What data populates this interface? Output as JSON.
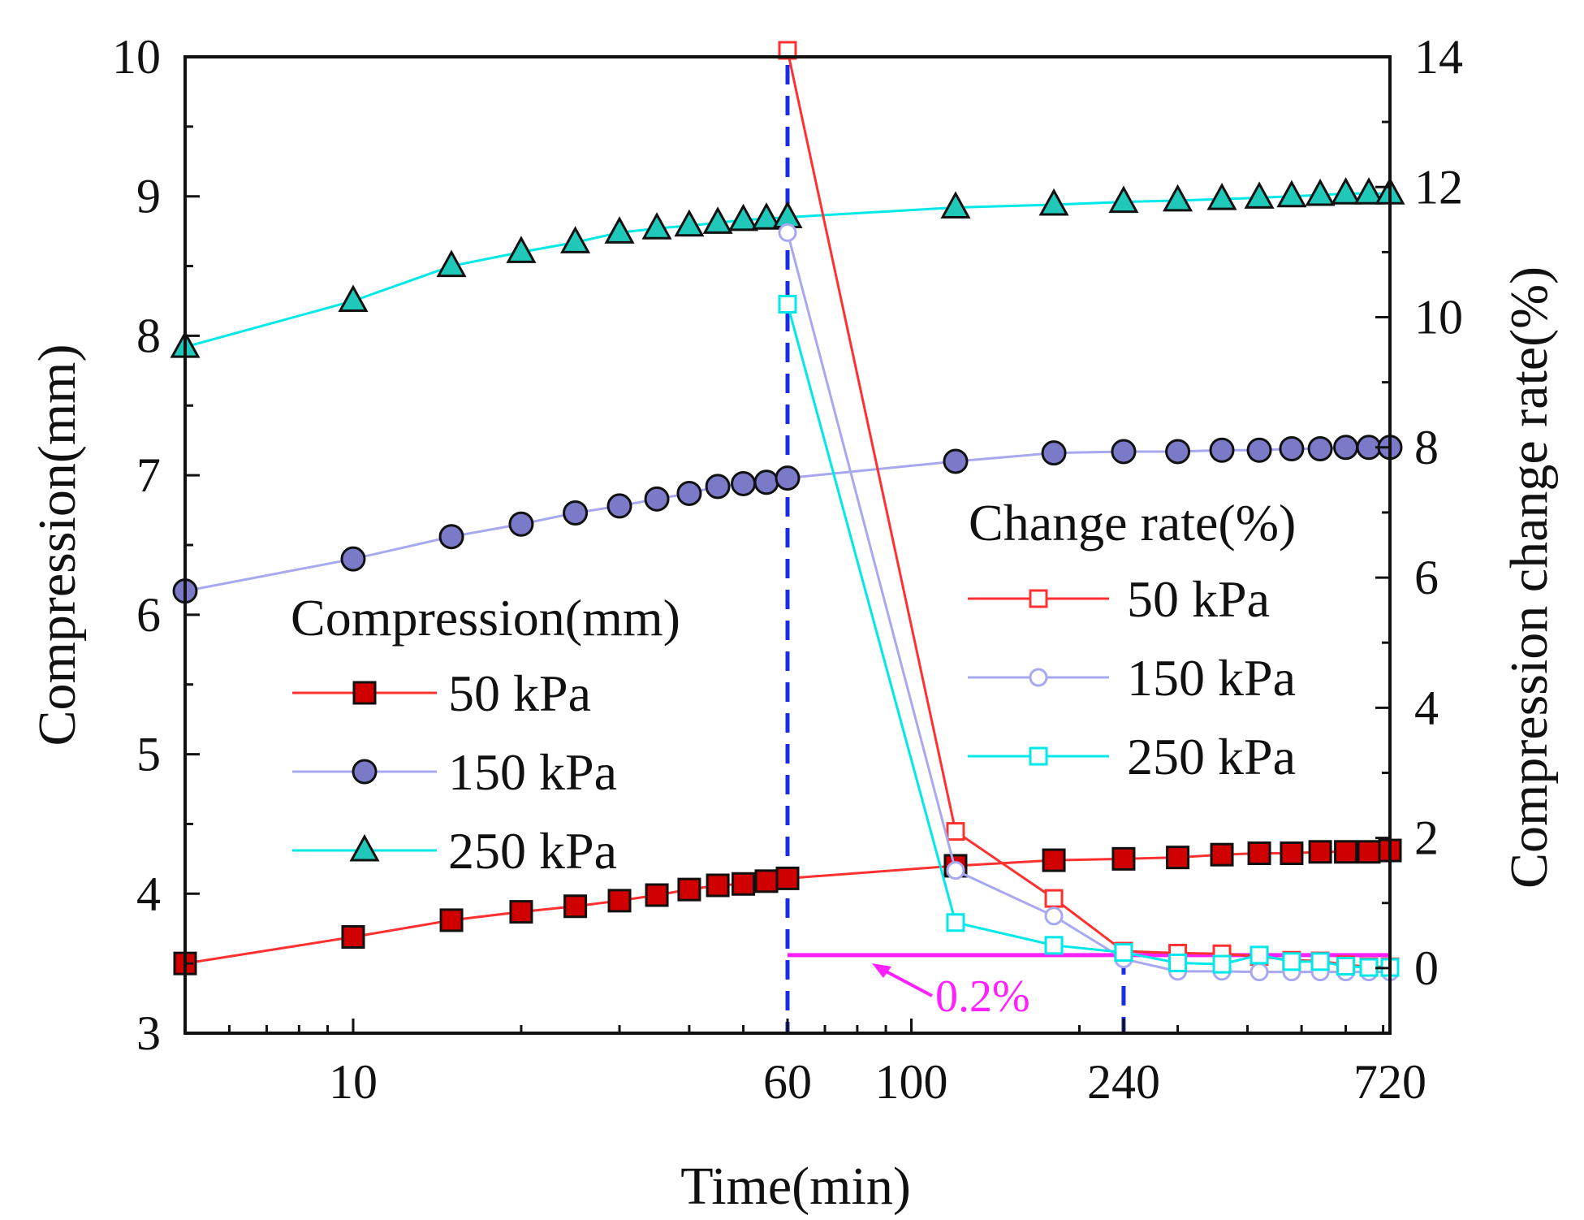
{
  "chart_data": {
    "type": "line",
    "xscale": "log",
    "xlabel": "Time(min)",
    "ylabel_left": "Compression(mm)",
    "ylabel_right": "Compression change rate(%)",
    "xlim": [
      5,
      720
    ],
    "ylim_left": [
      3,
      10
    ],
    "ylim_right": [
      -1,
      14
    ],
    "x_ticks": [
      10,
      60,
      100,
      240,
      720
    ],
    "y_ticks_left": [
      3,
      4,
      5,
      6,
      7,
      8,
      9,
      10
    ],
    "y_ticks_right": [
      0,
      2,
      4,
      6,
      8,
      10,
      12,
      14
    ],
    "grid": false,
    "compression": {
      "legend_title": "Compression(mm)",
      "legend_position": "center-left",
      "x": [
        5,
        10,
        15,
        20,
        25,
        30,
        35,
        40,
        45,
        50,
        55,
        60,
        120,
        180,
        240,
        300,
        360,
        420,
        480,
        540,
        600,
        660,
        720
      ],
      "series": [
        {
          "name": "50 kPa",
          "color": "#ff3030",
          "marker": "square-filled",
          "values": [
            3.5,
            3.69,
            3.81,
            3.87,
            3.91,
            3.95,
            3.99,
            4.03,
            4.06,
            4.07,
            4.09,
            4.11,
            4.2,
            4.24,
            4.25,
            4.26,
            4.28,
            4.29,
            4.29,
            4.3,
            4.3,
            4.3,
            4.31
          ]
        },
        {
          "name": "150 kPa",
          "color": "#a8a8f0",
          "marker": "circle-filled",
          "values": [
            6.17,
            6.4,
            6.56,
            6.65,
            6.73,
            6.78,
            6.83,
            6.87,
            6.92,
            6.94,
            6.95,
            6.98,
            7.1,
            7.16,
            7.17,
            7.17,
            7.18,
            7.18,
            7.19,
            7.19,
            7.2,
            7.2,
            7.2
          ]
        },
        {
          "name": "250 kPa",
          "color": "#00e8e8",
          "marker": "triangle-filled",
          "values": [
            7.92,
            8.25,
            8.5,
            8.6,
            8.67,
            8.74,
            8.77,
            8.79,
            8.81,
            8.83,
            8.84,
            8.85,
            8.92,
            8.94,
            8.96,
            8.97,
            8.98,
            8.99,
            9.0,
            9.01,
            9.02,
            9.02,
            9.02
          ]
        }
      ]
    },
    "change_rate": {
      "legend_title": "Change rate(%)",
      "legend_position": "center-right",
      "x": [
        60,
        120,
        180,
        240,
        300,
        360,
        420,
        480,
        540,
        600,
        660,
        720
      ],
      "series": [
        {
          "name": "50 kPa",
          "color": "#ff3030",
          "marker": "square-open",
          "values": [
            14.1,
            2.1,
            1.07,
            0.26,
            0.23,
            0.22,
            0.18,
            0.12,
            0.11,
            0.05,
            0.02,
            0.02
          ]
        },
        {
          "name": "150 kPa",
          "color": "#a8a8f0",
          "marker": "circle-open",
          "values": [
            11.3,
            1.5,
            0.8,
            0.14,
            -0.05,
            -0.05,
            -0.06,
            -0.06,
            -0.06,
            -0.06,
            -0.06,
            -0.06
          ]
        },
        {
          "name": "250 kPa",
          "color": "#00e8e8",
          "marker": "square-open",
          "values": [
            10.2,
            0.7,
            0.35,
            0.24,
            0.08,
            0.06,
            0.2,
            0.1,
            0.1,
            0.03,
            0.01,
            0.01
          ]
        }
      ]
    },
    "reference_lines": [
      {
        "type": "vertical",
        "x": 60,
        "color": "#1a2ce8",
        "style": "dashed"
      },
      {
        "type": "vertical",
        "x": 240,
        "color": "#1a2ce8",
        "style": "dashed"
      },
      {
        "type": "horizontal",
        "y_right": 0.2,
        "x_from": 60,
        "x_to": 720,
        "color": "#ff20ff",
        "label": "0.2%"
      }
    ]
  }
}
